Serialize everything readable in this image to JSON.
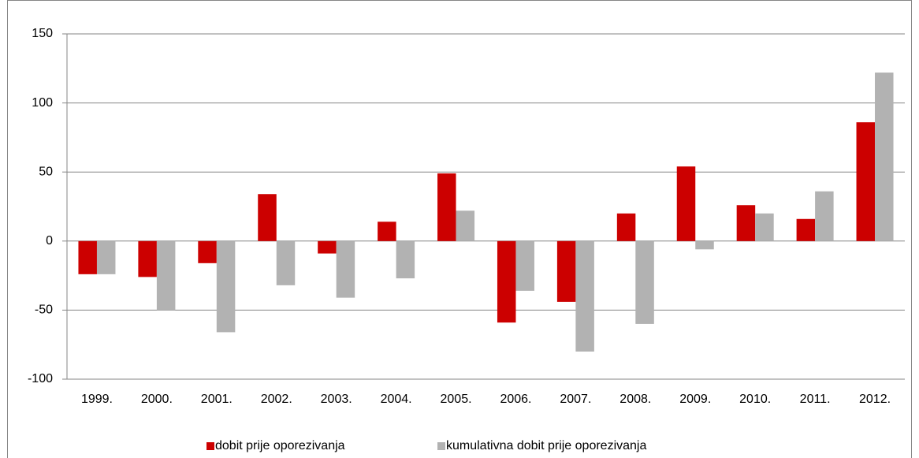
{
  "chart_data": {
    "type": "bar",
    "categories": [
      "1999.",
      "2000.",
      "2001.",
      "2002.",
      "2003.",
      "2004.",
      "2005.",
      "2006.",
      "2007.",
      "2008.",
      "2009.",
      "2010.",
      "2011.",
      "2012."
    ],
    "series": [
      {
        "name": "dobit prije oporezivanja",
        "color": "#cc0000",
        "values": [
          -24,
          -26,
          -16,
          34,
          -9,
          14,
          49,
          -59,
          -44,
          20,
          54,
          26,
          16,
          86
        ]
      },
      {
        "name": "kumulativna dobit prije oporezivanja",
        "color": "#b2b2b2",
        "values": [
          -24,
          -50,
          -66,
          -32,
          -41,
          -27,
          22,
          -36,
          -80,
          -60,
          -6,
          20,
          36,
          122
        ]
      }
    ],
    "ylim": [
      -100,
      150
    ],
    "yticks": [
      -100,
      -50,
      0,
      50,
      100,
      150
    ],
    "grid": true,
    "legend": "bottom"
  }
}
